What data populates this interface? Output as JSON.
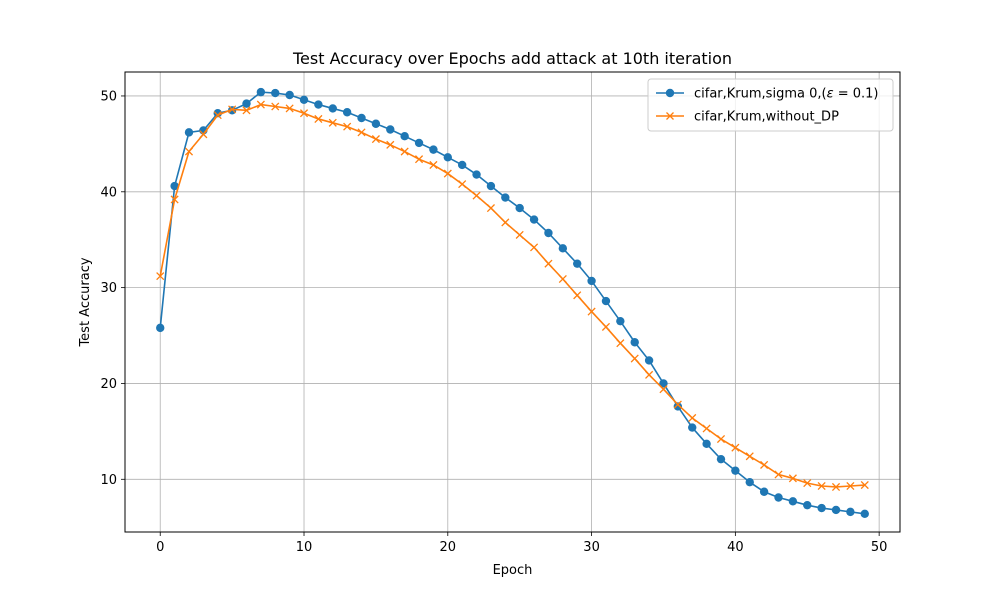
{
  "chart_data": {
    "type": "line",
    "title": "Test Accuracy over Epochs add attack at 10th iteration",
    "xlabel": "Epoch",
    "ylabel": "Test Accuracy",
    "xlim": [
      -2.45,
      51.45
    ],
    "ylim": [
      4.5,
      52.5
    ],
    "xticks": [
      0,
      10,
      20,
      30,
      40,
      50
    ],
    "yticks": [
      10,
      20,
      30,
      40,
      50
    ],
    "grid": true,
    "legend_position": "top-right",
    "x": [
      0,
      1,
      2,
      3,
      4,
      5,
      6,
      7,
      8,
      9,
      10,
      11,
      12,
      13,
      14,
      15,
      16,
      17,
      18,
      19,
      20,
      21,
      22,
      23,
      24,
      25,
      26,
      27,
      28,
      29,
      30,
      31,
      32,
      33,
      34,
      35,
      36,
      37,
      38,
      39,
      40,
      41,
      42,
      43,
      44,
      45,
      46,
      47,
      48,
      49
    ],
    "series": [
      {
        "name": "cifar,Krum,sigma 0,(ε = 0.1)",
        "legend_prefix": "cifar,Krum,sigma 0,(",
        "legend_eps": "ε",
        "legend_suffix": " = 0.1)",
        "color": "#1f77b4",
        "marker": "circle",
        "values": [
          25.8,
          40.6,
          46.2,
          46.4,
          48.2,
          48.5,
          49.2,
          50.4,
          50.3,
          50.1,
          49.6,
          49.1,
          48.7,
          48.3,
          47.7,
          47.1,
          46.5,
          45.8,
          45.1,
          44.4,
          43.6,
          42.8,
          41.8,
          40.6,
          39.4,
          38.3,
          37.1,
          35.7,
          34.1,
          32.5,
          30.7,
          28.6,
          26.5,
          24.3,
          22.4,
          20.0,
          17.6,
          15.4,
          13.7,
          12.1,
          10.9,
          9.7,
          8.7,
          8.1,
          7.7,
          7.3,
          7.0,
          6.8,
          6.6,
          6.4
        ]
      },
      {
        "name": "cifar,Krum,without_DP",
        "color": "#ff7f0e",
        "marker": "x",
        "values": [
          31.2,
          39.2,
          44.2,
          46.0,
          48.0,
          48.6,
          48.5,
          49.1,
          48.9,
          48.7,
          48.2,
          47.6,
          47.2,
          46.8,
          46.2,
          45.5,
          44.9,
          44.2,
          43.4,
          42.8,
          41.9,
          40.8,
          39.6,
          38.3,
          36.8,
          35.5,
          34.2,
          32.5,
          30.9,
          29.2,
          27.5,
          25.9,
          24.2,
          22.6,
          20.9,
          19.4,
          17.8,
          16.4,
          15.3,
          14.2,
          13.3,
          12.4,
          11.5,
          10.5,
          10.1,
          9.6,
          9.3,
          9.2,
          9.3,
          9.4
        ]
      }
    ]
  }
}
